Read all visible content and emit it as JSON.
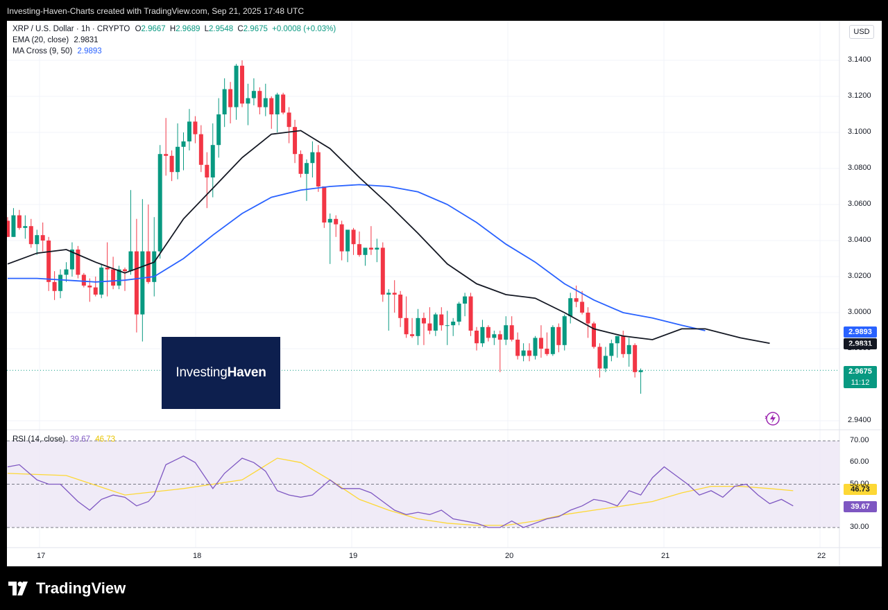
{
  "header": {
    "caption": "Investing-Haven-Charts created with TradingView.com, Sep 21, 2025 17:48 UTC"
  },
  "legend": {
    "symbol": "XRP / U.S. Dollar · 1h · CRYPTO",
    "open_label": "O",
    "open": "2.9667",
    "high_label": "H",
    "high": "2.9689",
    "low_label": "L",
    "low": "2.9548",
    "close_label": "C",
    "close": "2.9675",
    "change": "+0.0008 (+0.03%)",
    "ema_label": "EMA (20, close)",
    "ema_value": "2.9831",
    "ma_label": "MA Cross (9, 50)",
    "ma_value": "2.9893"
  },
  "rsi_legend": {
    "label": "RSI (14, close)",
    "value1": "39.67",
    "value2": "46.73"
  },
  "currency_button": "USD",
  "price_tags": {
    "ma50": "2.9893",
    "ema20": "2.9831",
    "last": "2.9675",
    "countdown": "11:12",
    "rsi": "39.67",
    "rsi_ma": "46.73"
  },
  "watermark": {
    "part1": "Investing",
    "part2": "Haven"
  },
  "footer": {
    "brand": "TradingView"
  },
  "colors": {
    "up": "#089981",
    "down": "#f23645",
    "ema": "#131722",
    "ma": "#2962ff",
    "rsi": "#7e57c2",
    "rsi_ma": "#fdd835",
    "rsi_band": "#ede7f6"
  },
  "chart_data": [
    {
      "type": "candlestick",
      "title": "XRP / U.S. Dollar · 1h · CRYPTO",
      "ylim": [
        2.935,
        3.152
      ],
      "y_ticks": [
        "3.1400",
        "3.1200",
        "3.1000",
        "3.0800",
        "3.0600",
        "3.0400",
        "3.0200",
        "3.0000",
        "2.9800",
        "2.9400"
      ],
      "x_ticks": [
        "17",
        "18",
        "19",
        "20",
        "21",
        "22"
      ],
      "candles": [
        [
          3.051,
          3.053,
          3.042,
          3.042
        ],
        [
          3.042,
          3.058,
          3.042,
          3.054
        ],
        [
          3.054,
          3.057,
          3.046,
          3.047
        ],
        [
          3.047,
          3.054,
          3.041,
          3.048
        ],
        [
          3.048,
          3.052,
          3.036,
          3.038
        ],
        [
          3.038,
          3.046,
          3.032,
          3.043
        ],
        [
          3.043,
          3.05,
          3.034,
          3.04
        ],
        [
          3.04,
          3.042,
          3.012,
          3.017
        ],
        [
          3.017,
          3.023,
          3.007,
          3.012
        ],
        [
          3.012,
          3.024,
          3.008,
          3.021
        ],
        [
          3.021,
          3.028,
          3.017,
          3.024
        ],
        [
          3.024,
          3.039,
          3.02,
          3.035
        ],
        [
          3.035,
          3.037,
          3.019,
          3.021
        ],
        [
          3.021,
          3.022,
          3.014,
          3.015
        ],
        [
          3.015,
          3.019,
          3.006,
          3.014
        ],
        [
          3.014,
          3.02,
          3.009,
          3.01
        ],
        [
          3.01,
          3.027,
          3.008,
          3.025
        ],
        [
          3.025,
          3.039,
          3.009,
          3.024
        ],
        [
          3.024,
          3.031,
          3.013,
          3.015
        ],
        [
          3.015,
          3.026,
          3.013,
          3.024
        ],
        [
          3.024,
          3.025,
          3.012,
          3.023
        ],
        [
          3.023,
          3.068,
          3.021,
          3.034
        ],
        [
          3.034,
          3.052,
          2.989,
          2.999
        ],
        [
          2.999,
          3.063,
          2.984,
          3.034
        ],
        [
          3.034,
          3.06,
          3.016,
          3.017
        ],
        [
          3.017,
          3.053,
          3.009,
          3.034
        ],
        [
          3.034,
          3.093,
          3.03,
          3.088
        ],
        [
          3.088,
          3.108,
          3.076,
          3.087
        ],
        [
          3.087,
          3.09,
          3.073,
          3.078
        ],
        [
          3.078,
          3.105,
          3.074,
          3.092
        ],
        [
          3.092,
          3.1,
          3.079,
          3.095
        ],
        [
          3.095,
          3.113,
          3.09,
          3.106
        ],
        [
          3.106,
          3.109,
          3.094,
          3.099
        ],
        [
          3.099,
          3.104,
          3.078,
          3.082
        ],
        [
          3.082,
          3.089,
          3.058,
          3.075
        ],
        [
          3.075,
          3.105,
          3.064,
          3.093
        ],
        [
          3.093,
          3.119,
          3.086,
          3.11
        ],
        [
          3.11,
          3.13,
          3.103,
          3.124
        ],
        [
          3.124,
          3.128,
          3.105,
          3.114
        ],
        [
          3.114,
          3.138,
          3.107,
          3.137
        ],
        [
          3.137,
          3.14,
          3.114,
          3.116
        ],
        [
          3.116,
          3.127,
          3.104,
          3.119
        ],
        [
          3.119,
          3.13,
          3.115,
          3.123
        ],
        [
          3.123,
          3.125,
          3.11,
          3.114
        ],
        [
          3.114,
          3.127,
          3.109,
          3.119
        ],
        [
          3.119,
          3.12,
          3.102,
          3.11
        ],
        [
          3.11,
          3.122,
          3.1,
          3.121
        ],
        [
          3.121,
          3.122,
          3.11,
          3.111
        ],
        [
          3.111,
          3.114,
          3.094,
          3.103
        ],
        [
          3.103,
          3.107,
          3.083,
          3.088
        ],
        [
          3.088,
          3.09,
          3.075,
          3.077
        ],
        [
          3.077,
          3.085,
          3.062,
          3.083
        ],
        [
          3.083,
          3.095,
          3.075,
          3.089
        ],
        [
          3.089,
          3.093,
          3.067,
          3.07
        ],
        [
          3.07,
          3.07,
          3.047,
          3.05
        ],
        [
          3.05,
          3.055,
          3.027,
          3.052
        ],
        [
          3.052,
          3.054,
          3.042,
          3.049
        ],
        [
          3.049,
          3.051,
          3.029,
          3.034
        ],
        [
          3.034,
          3.044,
          3.028,
          3.046
        ],
        [
          3.046,
          3.047,
          3.032,
          3.038
        ],
        [
          3.038,
          3.045,
          3.031,
          3.032
        ],
        [
          3.032,
          3.035,
          3.026,
          3.036
        ],
        [
          3.036,
          3.048,
          3.032,
          3.035
        ],
        [
          3.035,
          3.041,
          3.028,
          3.036
        ],
        [
          3.036,
          3.039,
          3.006,
          3.01
        ],
        [
          3.01,
          3.013,
          2.99,
          3.011
        ],
        [
          3.011,
          3.018,
          3.0,
          3.01
        ],
        [
          3.01,
          3.012,
          2.992,
          2.997
        ],
        [
          2.997,
          3.009,
          2.986,
          2.988
        ],
        [
          2.988,
          2.997,
          2.986,
          2.987
        ],
        [
          2.987,
          3.002,
          2.982,
          2.997
        ],
        [
          2.997,
          3.0,
          2.982,
          2.994
        ],
        [
          2.994,
          3.003,
          2.988,
          2.99
        ],
        [
          2.99,
          3.0,
          2.987,
          2.999
        ],
        [
          2.999,
          3.003,
          2.99,
          2.993
        ],
        [
          2.993,
          3.001,
          2.982,
          2.993
        ],
        [
          2.993,
          2.997,
          2.987,
          2.995
        ],
        [
          2.995,
          3.006,
          2.993,
          3.005
        ],
        [
          3.005,
          3.011,
          2.998,
          3.009
        ],
        [
          3.009,
          3.011,
          2.987,
          2.99
        ],
        [
          2.99,
          2.992,
          2.979,
          2.983
        ],
        [
          2.983,
          2.996,
          2.981,
          2.992
        ],
        [
          2.992,
          2.993,
          2.984,
          2.986
        ],
        [
          2.986,
          2.99,
          2.982,
          2.988
        ],
        [
          2.988,
          2.99,
          2.967,
          2.985
        ],
        [
          2.985,
          2.998,
          2.982,
          2.993
        ],
        [
          2.993,
          2.998,
          2.984,
          2.985
        ],
        [
          2.985,
          2.989,
          2.974,
          2.976
        ],
        [
          2.976,
          2.983,
          2.973,
          2.979
        ],
        [
          2.979,
          2.983,
          2.973,
          2.976
        ],
        [
          2.976,
          2.987,
          2.974,
          2.986
        ],
        [
          2.986,
          2.993,
          2.975,
          2.98
        ],
        [
          2.98,
          2.989,
          2.976,
          2.977
        ],
        [
          2.977,
          2.993,
          2.976,
          2.992
        ],
        [
          2.992,
          2.994,
          2.978,
          2.982
        ],
        [
          2.982,
          2.999,
          2.979,
          2.998
        ],
        [
          2.998,
          3.011,
          2.994,
          3.008
        ],
        [
          3.008,
          3.015,
          3.003,
          3.006
        ],
        [
          3.006,
          3.012,
          2.999,
          3.0
        ],
        [
          3.0,
          3.003,
          2.986,
          2.994
        ],
        [
          2.994,
          2.995,
          2.98,
          2.981
        ],
        [
          2.981,
          2.983,
          2.964,
          2.969
        ],
        [
          2.969,
          2.981,
          2.967,
          2.976
        ],
        [
          2.976,
          2.985,
          2.973,
          2.983
        ],
        [
          2.983,
          2.986,
          2.975,
          2.987
        ],
        [
          2.987,
          2.99,
          2.975,
          2.977
        ],
        [
          2.977,
          2.986,
          2.97,
          2.982
        ],
        [
          2.982,
          2.983,
          2.964,
          2.967
        ],
        [
          2.967,
          2.969,
          2.955,
          2.968
        ]
      ],
      "ema20": [
        [
          0,
          3.027
        ],
        [
          5,
          3.033
        ],
        [
          10,
          3.035
        ],
        [
          15,
          3.028
        ],
        [
          20,
          3.022
        ],
        [
          25,
          3.028
        ],
        [
          30,
          3.052
        ],
        [
          35,
          3.069
        ],
        [
          40,
          3.086
        ],
        [
          45,
          3.099
        ],
        [
          50,
          3.101
        ],
        [
          55,
          3.091
        ],
        [
          60,
          3.075
        ],
        [
          65,
          3.06
        ],
        [
          70,
          3.044
        ],
        [
          75,
          3.027
        ],
        [
          80,
          3.016
        ],
        [
          85,
          3.01
        ],
        [
          90,
          3.008
        ],
        [
          95,
          3.0
        ],
        [
          100,
          2.991
        ],
        [
          105,
          2.987
        ],
        [
          110,
          2.985
        ],
        [
          115,
          2.991
        ],
        [
          119,
          2.991
        ],
        [
          125,
          2.986
        ],
        [
          130,
          2.983
        ]
      ],
      "ma50": [
        [
          0,
          3.019
        ],
        [
          5,
          3.019
        ],
        [
          10,
          3.018
        ],
        [
          15,
          3.017
        ],
        [
          20,
          3.018
        ],
        [
          25,
          3.02
        ],
        [
          30,
          3.03
        ],
        [
          35,
          3.043
        ],
        [
          40,
          3.055
        ],
        [
          45,
          3.064
        ],
        [
          50,
          3.068
        ],
        [
          55,
          3.07
        ],
        [
          60,
          3.071
        ],
        [
          65,
          3.07
        ],
        [
          70,
          3.067
        ],
        [
          75,
          3.06
        ],
        [
          80,
          3.05
        ],
        [
          85,
          3.038
        ],
        [
          90,
          3.028
        ],
        [
          95,
          3.016
        ],
        [
          100,
          3.007
        ],
        [
          105,
          3.0
        ],
        [
          110,
          2.997
        ],
        [
          115,
          2.993
        ],
        [
          119,
          2.99
        ]
      ]
    },
    {
      "type": "line",
      "title": "RSI (14, close)",
      "ylim": [
        25,
        75
      ],
      "y_ticks": [
        "70.00",
        "60.00",
        "50.00",
        "30.00"
      ],
      "bands": [
        30,
        50,
        70
      ],
      "rsi": [
        [
          0,
          58
        ],
        [
          2,
          59
        ],
        [
          5,
          52
        ],
        [
          7,
          50
        ],
        [
          9,
          50
        ],
        [
          12,
          42
        ],
        [
          14,
          38
        ],
        [
          16,
          43
        ],
        [
          18,
          45
        ],
        [
          20,
          44
        ],
        [
          22,
          40
        ],
        [
          24,
          42
        ],
        [
          25,
          45
        ],
        [
          27,
          59
        ],
        [
          30,
          63
        ],
        [
          32,
          60
        ],
        [
          35,
          48
        ],
        [
          37,
          55
        ],
        [
          40,
          62
        ],
        [
          42,
          60
        ],
        [
          44,
          56
        ],
        [
          46,
          47
        ],
        [
          48,
          45
        ],
        [
          50,
          44
        ],
        [
          52,
          45
        ],
        [
          55,
          52
        ],
        [
          57,
          48
        ],
        [
          60,
          48
        ],
        [
          62,
          46
        ],
        [
          64,
          42
        ],
        [
          66,
          38
        ],
        [
          68,
          36
        ],
        [
          70,
          37
        ],
        [
          72,
          36
        ],
        [
          74,
          38
        ],
        [
          76,
          34
        ],
        [
          78,
          33
        ],
        [
          80,
          32
        ],
        [
          82,
          30
        ],
        [
          84,
          30
        ],
        [
          86,
          33
        ],
        [
          88,
          30
        ],
        [
          90,
          32
        ],
        [
          92,
          34
        ],
        [
          94,
          35
        ],
        [
          96,
          38
        ],
        [
          98,
          40
        ],
        [
          100,
          43
        ],
        [
          102,
          42
        ],
        [
          104,
          40
        ],
        [
          106,
          47
        ],
        [
          108,
          45
        ],
        [
          110,
          53
        ],
        [
          112,
          58
        ],
        [
          114,
          54
        ],
        [
          116,
          50
        ],
        [
          118,
          45
        ],
        [
          120,
          47
        ],
        [
          122,
          44
        ],
        [
          124,
          49
        ],
        [
          126,
          50
        ],
        [
          128,
          45
        ],
        [
          130,
          41
        ],
        [
          132,
          43
        ],
        [
          134,
          40
        ]
      ],
      "rsi_ma": [
        [
          0,
          55
        ],
        [
          10,
          54
        ],
        [
          20,
          45
        ],
        [
          30,
          48
        ],
        [
          40,
          52
        ],
        [
          46,
          62
        ],
        [
          50,
          60
        ],
        [
          55,
          52
        ],
        [
          60,
          43
        ],
        [
          65,
          38
        ],
        [
          70,
          34
        ],
        [
          75,
          32
        ],
        [
          80,
          31
        ],
        [
          85,
          31
        ],
        [
          90,
          33
        ],
        [
          95,
          36
        ],
        [
          100,
          38
        ],
        [
          105,
          40
        ],
        [
          110,
          42
        ],
        [
          115,
          46
        ],
        [
          120,
          49
        ],
        [
          125,
          49
        ],
        [
          130,
          48
        ],
        [
          134,
          47
        ]
      ]
    }
  ]
}
